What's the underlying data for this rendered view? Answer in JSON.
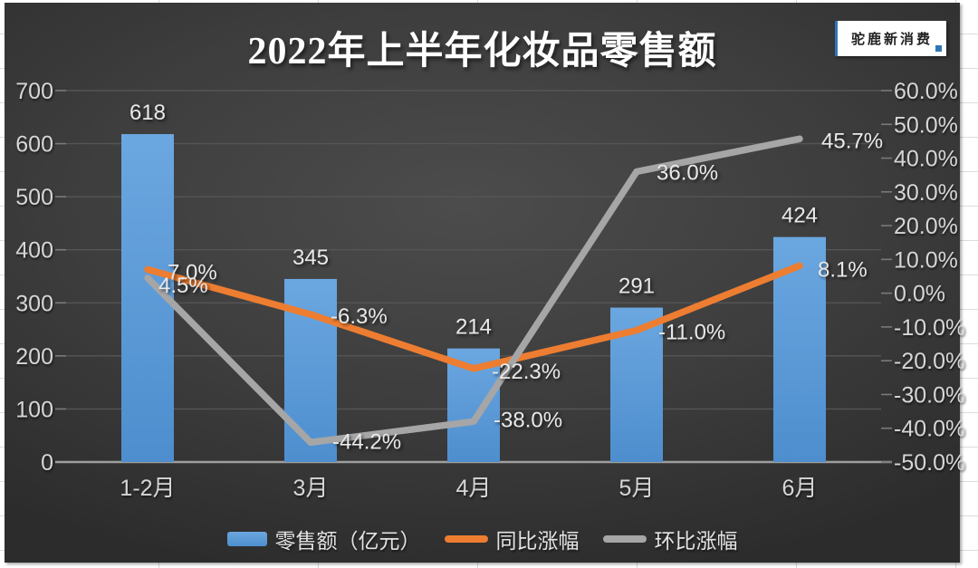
{
  "title": "2022年上半年化妆品零售额",
  "badge": {
    "label": "驼鹿新消费"
  },
  "chart_data": {
    "type": "bar",
    "title": "2022年上半年化妆品零售额",
    "categories": [
      "1-2月",
      "3月",
      "4月",
      "5月",
      "6月"
    ],
    "series": [
      {
        "name": "零售额（亿元）",
        "type": "bar",
        "axis": "left",
        "color": "#5B9BD5",
        "values": [
          618,
          345,
          214,
          291,
          424
        ],
        "labels": [
          "618",
          "345",
          "214",
          "291",
          "424"
        ]
      },
      {
        "name": "同比涨幅",
        "type": "line",
        "axis": "right",
        "color": "#ED7D31",
        "values": [
          7.0,
          -6.3,
          -22.3,
          -11.0,
          8.1
        ],
        "labels": [
          "7.0%",
          "-6.3%",
          "-22.3%",
          "-11.0%",
          "8.1%"
        ]
      },
      {
        "name": "环比涨幅",
        "type": "line",
        "axis": "right",
        "color": "#A6A6A6",
        "values": [
          4.5,
          -44.2,
          -38.0,
          36.0,
          45.7
        ],
        "labels": [
          "4.5%",
          "-44.2%",
          "-38.0%",
          "36.0%",
          "45.7%"
        ]
      }
    ],
    "left_axis": {
      "min": 0,
      "max": 700,
      "step": 100,
      "ticks": [
        "0",
        "100",
        "200",
        "300",
        "400",
        "500",
        "600",
        "700"
      ]
    },
    "right_axis": {
      "min": -50,
      "max": 60,
      "step": 10,
      "ticks": [
        "60.0%",
        "50.0%",
        "40.0%",
        "30.0%",
        "20.0%",
        "10.0%",
        "0.0%",
        "-10.0%",
        "-20.0%",
        "-30.0%",
        "-40.0%",
        "-50.0%"
      ]
    },
    "legend_position": "bottom",
    "grid": true
  },
  "colors": {
    "bar": "#5B9BD5",
    "bar_top": "#6BA7E0",
    "bar_bottom": "#4E8ECE",
    "line_yoy": "#ED7D31",
    "line_mom": "#A6A6A6",
    "chart_bg_center": "#4B4B4B",
    "chart_bg_edge": "#2C2C2C",
    "grid_line": "#555555",
    "zero_line": "#9E9E9E",
    "axis_text": "#D6D6D6",
    "label_text": "#E9E9E9",
    "title_text": "#FFFFFF",
    "badge_accent": "#2E75B6",
    "page_bg": "#FFFFFF"
  }
}
